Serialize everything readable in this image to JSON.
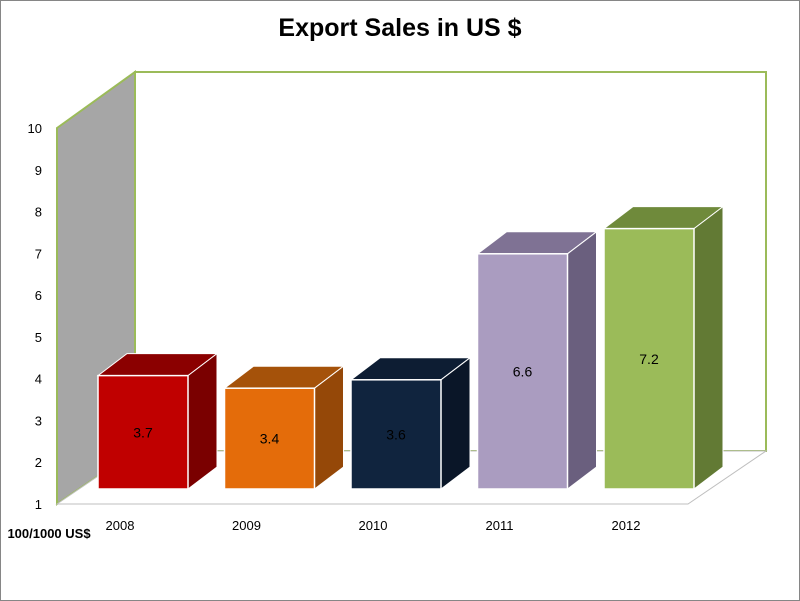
{
  "chart_data": {
    "type": "bar",
    "title": "Export Sales in US $",
    "ylabel": "100/1000 US$",
    "xlabel": "",
    "ylim": [
      1,
      10
    ],
    "yticks": [
      1,
      2,
      3,
      4,
      5,
      6,
      7,
      8,
      9,
      10
    ],
    "categories": [
      "2008",
      "2009",
      "2010",
      "2011",
      "2012"
    ],
    "values": [
      3.7,
      3.4,
      3.6,
      6.6,
      7.2
    ],
    "data_labels": [
      "3.7",
      "3.4",
      "3.6",
      "6.6",
      "7.2"
    ],
    "bar_colors": [
      {
        "front": "#c00000",
        "top": "#8b0000",
        "side": "#7a0000"
      },
      {
        "front": "#e46c0a",
        "top": "#a5520a",
        "side": "#954808"
      },
      {
        "front": "#10243e",
        "top": "#0d1d33",
        "side": "#0a1628"
      },
      {
        "front": "#aa9cc0",
        "top": "#7f7294",
        "side": "#6a5f7e"
      },
      {
        "front": "#9bbb59",
        "top": "#6f8a3b",
        "side": "#627a34"
      }
    ],
    "wall_color": "#a6a6a6",
    "wall_border_color": "#9bbb59",
    "grid": false,
    "legend": "none"
  }
}
